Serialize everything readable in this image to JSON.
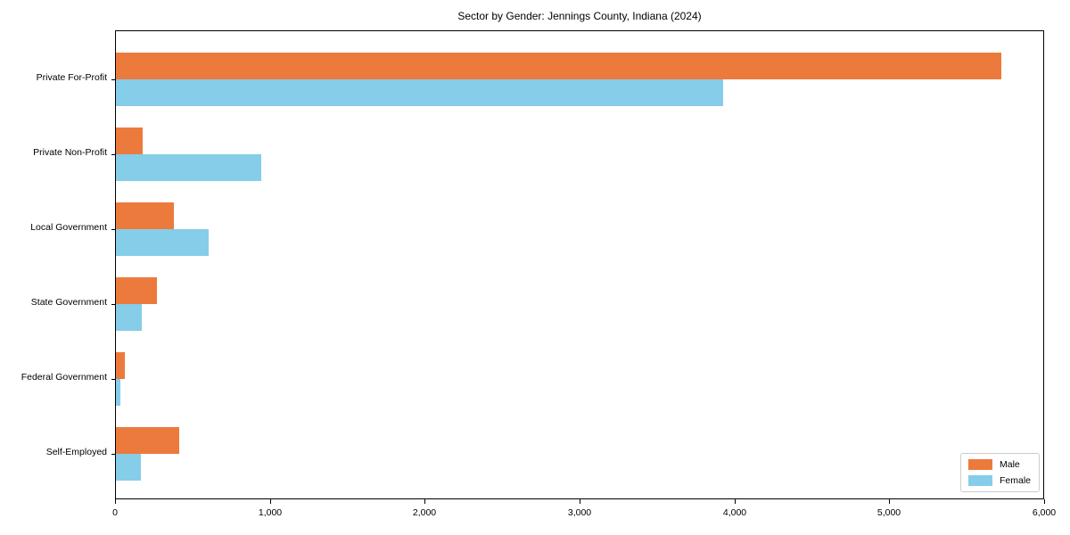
{
  "chart_data": {
    "type": "bar",
    "orientation": "horizontal",
    "title": "Sector by Gender: Jennings County, Indiana (2024)",
    "categories": [
      "Private For-Profit",
      "Private Non-Profit",
      "Local Government",
      "State Government",
      "Federal Government",
      "Self-Employed"
    ],
    "series": [
      {
        "name": "Male",
        "color": "#ec7a3d",
        "values": [
          5720,
          170,
          375,
          265,
          60,
          410
        ]
      },
      {
        "name": "Female",
        "color": "#85cde8",
        "values": [
          3920,
          940,
          600,
          165,
          30,
          160
        ]
      }
    ],
    "xlabel": "",
    "ylabel": "",
    "xlim": [
      0,
      6000
    ],
    "x_ticks": [
      "0",
      "1,000",
      "2,000",
      "3,000",
      "4,000",
      "5,000",
      "6,000"
    ],
    "x_tick_values": [
      0,
      1000,
      2000,
      3000,
      4000,
      5000,
      6000
    ],
    "grid": false,
    "legend_position": "lower right",
    "legend_entries": [
      "Male",
      "Female"
    ]
  }
}
